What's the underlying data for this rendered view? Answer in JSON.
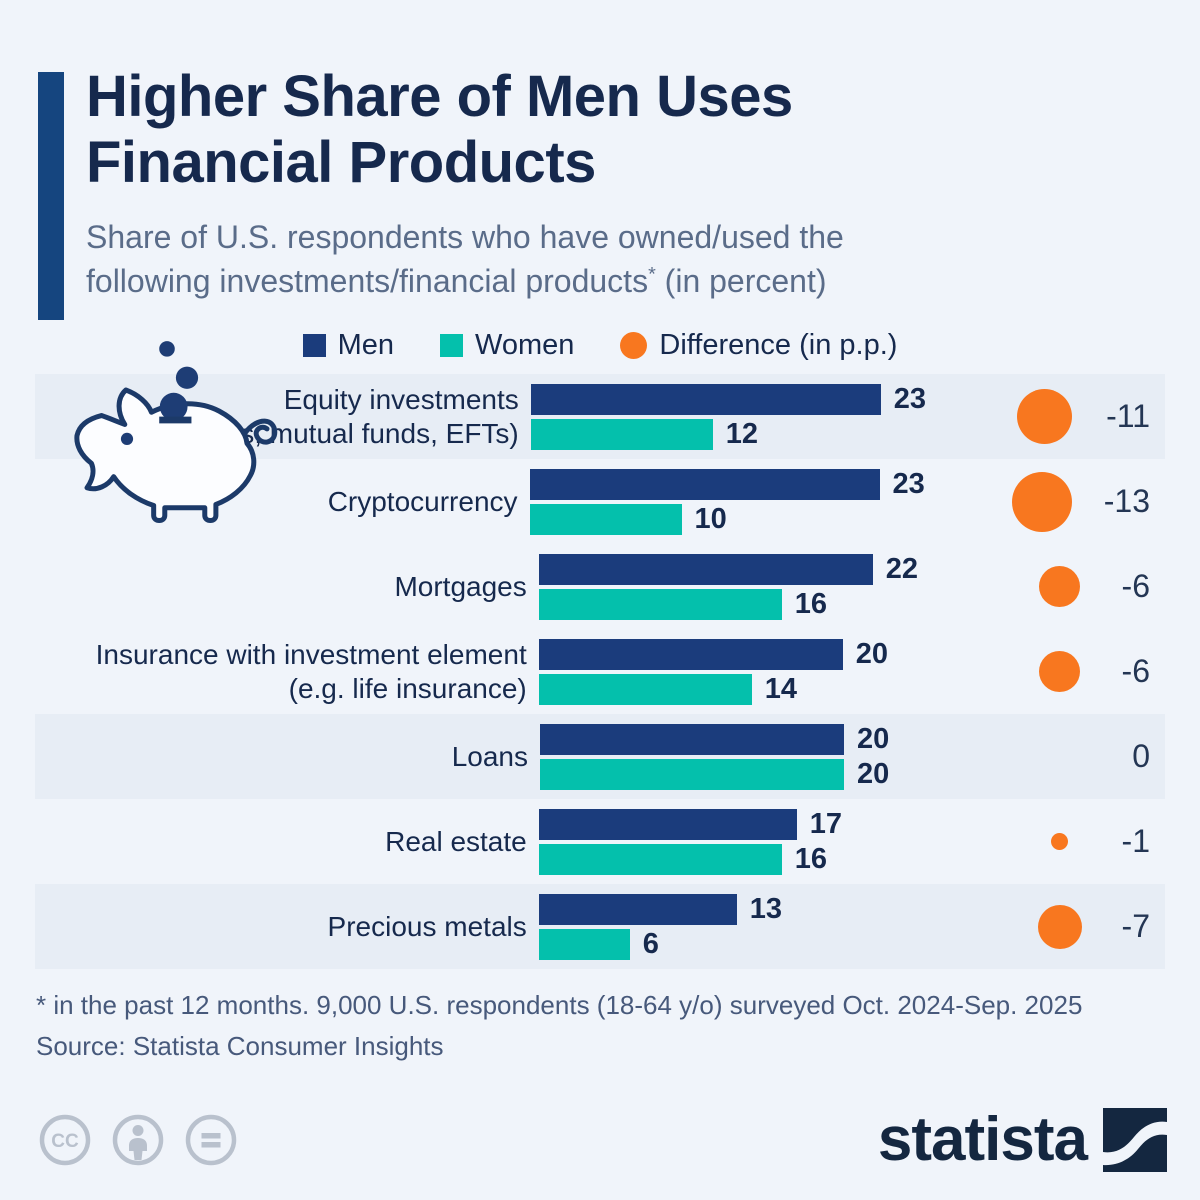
{
  "header": {
    "title_line1": "Higher Share of Men Uses",
    "title_line2": "Financial Products",
    "subtitle_line1": "Share of U.S. respondents who have owned/used the",
    "subtitle_line2_main": "following investments/financial products",
    "subtitle_asterisk": "*",
    "subtitle_suffix": " (in percent)"
  },
  "legend": {
    "items": [
      {
        "label": "Men",
        "shape": "square",
        "color": "#1b3c7c"
      },
      {
        "label": "Women",
        "shape": "square",
        "color": "#04c0ac"
      },
      {
        "label": "Difference (in p.p.)",
        "shape": "circle",
        "color": "#f8771f"
      }
    ]
  },
  "chart_data": {
    "type": "bar",
    "orientation": "horizontal",
    "unit": "percent",
    "series_names": [
      "Men",
      "Women",
      "Difference (in p.p.)"
    ],
    "categories": [
      "Equity investments (e.g. stocks, mutual funds, EFTs)",
      "Cryptocurrency",
      "Mortgages",
      "Insurance with investment element (e.g. life insurance)",
      "Loans",
      "Real estate",
      "Precious metals"
    ],
    "rows": [
      {
        "label_line1": "Equity investments",
        "label_line2": "(e.g. stocks, mutual funds, EFTs)",
        "men": 23,
        "women": 12,
        "difference": -11,
        "banded": true
      },
      {
        "label_line1": "Cryptocurrency",
        "label_line2": "",
        "men": 23,
        "women": 10,
        "difference": -13,
        "banded": false
      },
      {
        "label_line1": "Mortgages",
        "label_line2": "",
        "men": 22,
        "women": 16,
        "difference": -6,
        "banded": false
      },
      {
        "label_line1": "Insurance with investment element",
        "label_line2": "(e.g. life insurance)",
        "men": 20,
        "women": 14,
        "difference": -6,
        "banded": false
      },
      {
        "label_line1": "Loans",
        "label_line2": "",
        "men": 20,
        "women": 20,
        "difference": 0,
        "banded": true
      },
      {
        "label_line1": "Real estate",
        "label_line2": "",
        "men": 17,
        "women": 16,
        "difference": -1,
        "banded": false
      },
      {
        "label_line1": "Precious metals",
        "label_line2": "",
        "men": 13,
        "women": 6,
        "difference": -7,
        "banded": true
      }
    ],
    "value_axis_range": [
      0,
      23
    ],
    "grid": false,
    "legend_position": "top",
    "colors": {
      "men": "#1b3c7c",
      "women": "#04c0ac",
      "difference": "#f8771f",
      "row_band": "#e7edf5",
      "background": "#f0f4fa",
      "accent_bar": "#15457f"
    }
  },
  "illustration": {
    "name": "piggy-bank-with-coins"
  },
  "footer": {
    "footnote": "* in the past 12 months. 9,000 U.S. respondents (18-64 y/o) surveyed Oct. 2024-Sep. 2025",
    "source": "Source: Statista Consumer Insights"
  },
  "branding": {
    "logo_text": "statista",
    "license_icons": [
      "cc-icon",
      "attribution-person-icon",
      "equals-icon"
    ]
  }
}
